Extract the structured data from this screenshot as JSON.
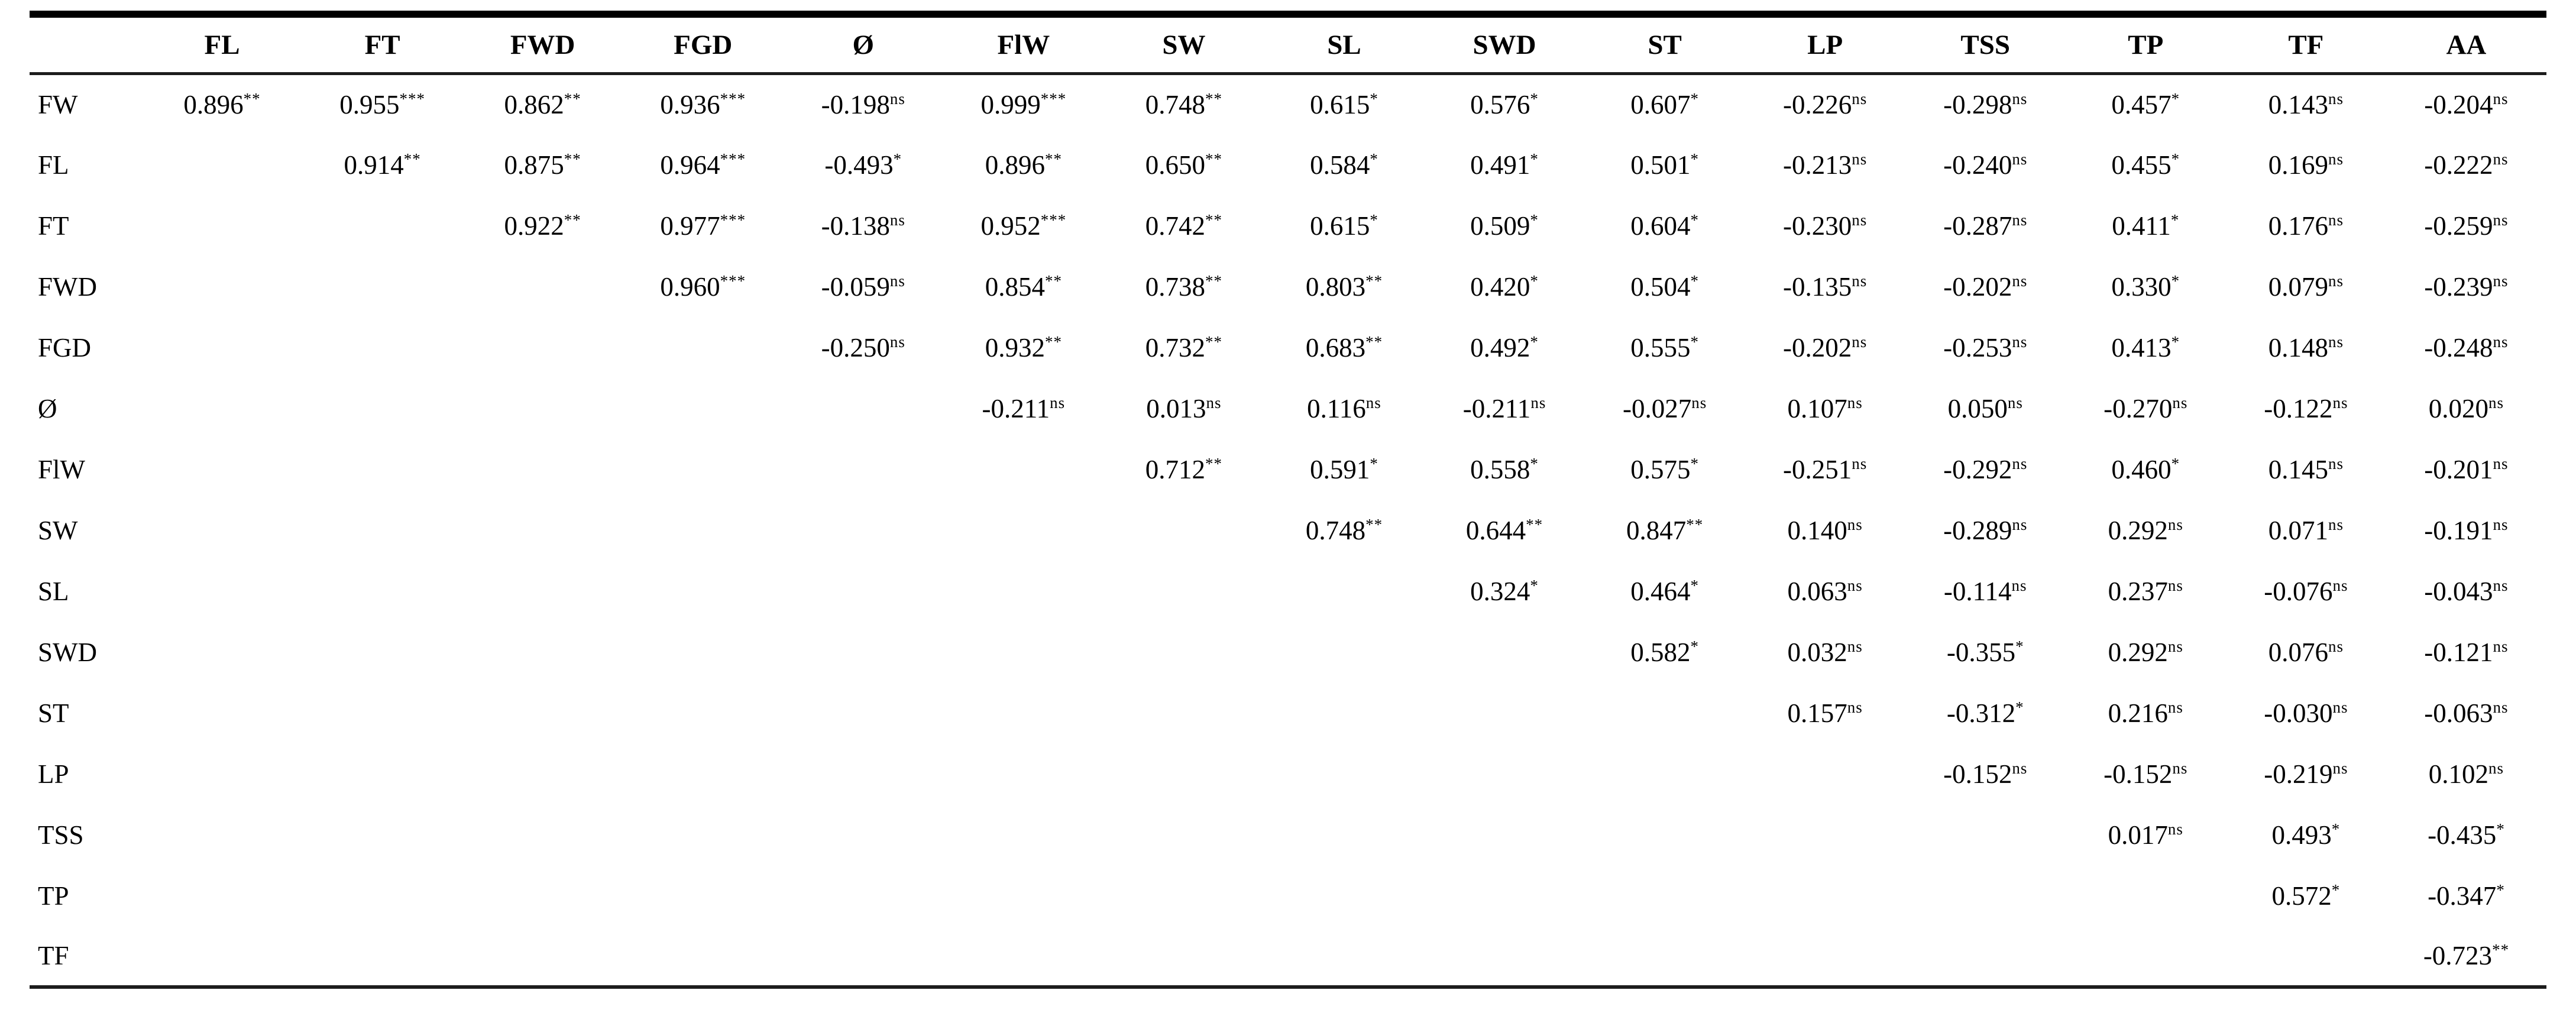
{
  "table": {
    "corner_label": "",
    "columns": [
      "FL",
      "FT",
      "FWD",
      "FGD",
      "Ø",
      "FlW",
      "SW",
      "SL",
      "SWD",
      "ST",
      "LP",
      "TSS",
      "TP",
      "TF",
      "AA"
    ],
    "significance_codes": [
      "*",
      "**",
      "***",
      "ns"
    ],
    "rows": [
      {
        "label": "FW",
        "cells": [
          {
            "v": "0.896",
            "s": "**"
          },
          {
            "v": "0.955",
            "s": "***"
          },
          {
            "v": "0.862",
            "s": "**"
          },
          {
            "v": "0.936",
            "s": "***"
          },
          {
            "v": "-0.198",
            "s": "ns"
          },
          {
            "v": "0.999",
            "s": "***"
          },
          {
            "v": "0.748",
            "s": "**"
          },
          {
            "v": "0.615",
            "s": "*"
          },
          {
            "v": "0.576",
            "s": "*"
          },
          {
            "v": "0.607",
            "s": "*"
          },
          {
            "v": "-0.226",
            "s": "ns"
          },
          {
            "v": "-0.298",
            "s": "ns"
          },
          {
            "v": "0.457",
            "s": "*"
          },
          {
            "v": "0.143",
            "s": "ns"
          },
          {
            "v": "-0.204",
            "s": "ns"
          }
        ]
      },
      {
        "label": "FL",
        "cells": [
          null,
          {
            "v": "0.914",
            "s": "**"
          },
          {
            "v": "0.875",
            "s": "**"
          },
          {
            "v": "0.964",
            "s": "***"
          },
          {
            "v": "-0.493",
            "s": "*"
          },
          {
            "v": "0.896",
            "s": "**"
          },
          {
            "v": "0.650",
            "s": "**"
          },
          {
            "v": "0.584",
            "s": "*"
          },
          {
            "v": "0.491",
            "s": "*"
          },
          {
            "v": "0.501",
            "s": "*"
          },
          {
            "v": "-0.213",
            "s": "ns"
          },
          {
            "v": "-0.240",
            "s": "ns"
          },
          {
            "v": "0.455",
            "s": "*"
          },
          {
            "v": "0.169",
            "s": "ns"
          },
          {
            "v": "-0.222",
            "s": "ns"
          }
        ]
      },
      {
        "label": "FT",
        "cells": [
          null,
          null,
          {
            "v": "0.922",
            "s": "**"
          },
          {
            "v": "0.977",
            "s": "***"
          },
          {
            "v": "-0.138",
            "s": "ns"
          },
          {
            "v": "0.952",
            "s": "***"
          },
          {
            "v": "0.742",
            "s": "**"
          },
          {
            "v": "0.615",
            "s": "*"
          },
          {
            "v": "0.509",
            "s": "*"
          },
          {
            "v": "0.604",
            "s": "*"
          },
          {
            "v": "-0.230",
            "s": "ns"
          },
          {
            "v": "-0.287",
            "s": "ns"
          },
          {
            "v": "0.411",
            "s": "*"
          },
          {
            "v": "0.176",
            "s": "ns"
          },
          {
            "v": "-0.259",
            "s": "ns"
          }
        ]
      },
      {
        "label": "FWD",
        "cells": [
          null,
          null,
          null,
          {
            "v": "0.960",
            "s": "***"
          },
          {
            "v": "-0.059",
            "s": "ns"
          },
          {
            "v": "0.854",
            "s": "**"
          },
          {
            "v": "0.738",
            "s": "**"
          },
          {
            "v": "0.803",
            "s": "**"
          },
          {
            "v": "0.420",
            "s": "*"
          },
          {
            "v": "0.504",
            "s": "*"
          },
          {
            "v": "-0.135",
            "s": "ns"
          },
          {
            "v": "-0.202",
            "s": "ns"
          },
          {
            "v": "0.330",
            "s": "*"
          },
          {
            "v": "0.079",
            "s": "ns"
          },
          {
            "v": "-0.239",
            "s": "ns"
          }
        ]
      },
      {
        "label": "FGD",
        "cells": [
          null,
          null,
          null,
          null,
          {
            "v": "-0.250",
            "s": "ns"
          },
          {
            "v": "0.932",
            "s": "**"
          },
          {
            "v": "0.732",
            "s": "**"
          },
          {
            "v": "0.683",
            "s": "**"
          },
          {
            "v": "0.492",
            "s": "*"
          },
          {
            "v": "0.555",
            "s": "*"
          },
          {
            "v": "-0.202",
            "s": "ns"
          },
          {
            "v": "-0.253",
            "s": "ns"
          },
          {
            "v": "0.413",
            "s": "*"
          },
          {
            "v": "0.148",
            "s": "ns"
          },
          {
            "v": "-0.248",
            "s": "ns"
          }
        ]
      },
      {
        "label": "Ø",
        "cells": [
          null,
          null,
          null,
          null,
          null,
          {
            "v": "-0.211",
            "s": "ns"
          },
          {
            "v": "0.013",
            "s": "ns"
          },
          {
            "v": "0.116",
            "s": "ns"
          },
          {
            "v": "-0.211",
            "s": "ns"
          },
          {
            "v": "-0.027",
            "s": "ns"
          },
          {
            "v": "0.107",
            "s": "ns"
          },
          {
            "v": "0.050",
            "s": "ns"
          },
          {
            "v": "-0.270",
            "s": "ns"
          },
          {
            "v": "-0.122",
            "s": "ns"
          },
          {
            "v": "0.020",
            "s": "ns"
          }
        ]
      },
      {
        "label": "FlW",
        "cells": [
          null,
          null,
          null,
          null,
          null,
          null,
          {
            "v": "0.712",
            "s": "**"
          },
          {
            "v": "0.591",
            "s": "*"
          },
          {
            "v": "0.558",
            "s": "*"
          },
          {
            "v": "0.575",
            "s": "*"
          },
          {
            "v": "-0.251",
            "s": "ns"
          },
          {
            "v": "-0.292",
            "s": "ns"
          },
          {
            "v": "0.460",
            "s": "*"
          },
          {
            "v": "0.145",
            "s": "ns"
          },
          {
            "v": "-0.201",
            "s": "ns"
          }
        ]
      },
      {
        "label": "SW",
        "cells": [
          null,
          null,
          null,
          null,
          null,
          null,
          null,
          {
            "v": "0.748",
            "s": "**"
          },
          {
            "v": "0.644",
            "s": "**"
          },
          {
            "v": "0.847",
            "s": "**"
          },
          {
            "v": "0.140",
            "s": "ns"
          },
          {
            "v": "-0.289",
            "s": "ns"
          },
          {
            "v": "0.292",
            "s": "ns"
          },
          {
            "v": "0.071",
            "s": "ns"
          },
          {
            "v": "-0.191",
            "s": "ns"
          }
        ]
      },
      {
        "label": "SL",
        "cells": [
          null,
          null,
          null,
          null,
          null,
          null,
          null,
          null,
          {
            "v": "0.324",
            "s": "*"
          },
          {
            "v": "0.464",
            "s": "*"
          },
          {
            "v": "0.063",
            "s": "ns"
          },
          {
            "v": "-0.114",
            "s": "ns"
          },
          {
            "v": "0.237",
            "s": "ns"
          },
          {
            "v": "-0.076",
            "s": "ns"
          },
          {
            "v": "-0.043",
            "s": "ns"
          }
        ]
      },
      {
        "label": "SWD",
        "cells": [
          null,
          null,
          null,
          null,
          null,
          null,
          null,
          null,
          null,
          {
            "v": "0.582",
            "s": "*"
          },
          {
            "v": "0.032",
            "s": "ns"
          },
          {
            "v": "-0.355",
            "s": "*"
          },
          {
            "v": "0.292",
            "s": "ns"
          },
          {
            "v": "0.076",
            "s": "ns"
          },
          {
            "v": "-0.121",
            "s": "ns"
          }
        ]
      },
      {
        "label": "ST",
        "cells": [
          null,
          null,
          null,
          null,
          null,
          null,
          null,
          null,
          null,
          null,
          {
            "v": "0.157",
            "s": "ns"
          },
          {
            "v": "-0.312",
            "s": "*"
          },
          {
            "v": "0.216",
            "s": "ns"
          },
          {
            "v": "-0.030",
            "s": "ns"
          },
          {
            "v": "-0.063",
            "s": "ns"
          }
        ]
      },
      {
        "label": "LP",
        "cells": [
          null,
          null,
          null,
          null,
          null,
          null,
          null,
          null,
          null,
          null,
          null,
          {
            "v": "-0.152",
            "s": "ns"
          },
          {
            "v": "-0.152",
            "s": "ns"
          },
          {
            "v": "-0.219",
            "s": "ns"
          },
          {
            "v": "0.102",
            "s": "ns"
          }
        ]
      },
      {
        "label": "TSS",
        "cells": [
          null,
          null,
          null,
          null,
          null,
          null,
          null,
          null,
          null,
          null,
          null,
          null,
          {
            "v": "0.017",
            "s": "ns"
          },
          {
            "v": "0.493",
            "s": "*"
          },
          {
            "v": "-0.435",
            "s": "*"
          }
        ]
      },
      {
        "label": "TP",
        "cells": [
          null,
          null,
          null,
          null,
          null,
          null,
          null,
          null,
          null,
          null,
          null,
          null,
          null,
          {
            "v": "0.572",
            "s": "*"
          },
          {
            "v": "-0.347",
            "s": "*"
          }
        ]
      },
      {
        "label": "TF",
        "cells": [
          null,
          null,
          null,
          null,
          null,
          null,
          null,
          null,
          null,
          null,
          null,
          null,
          null,
          null,
          {
            "v": "-0.723",
            "s": "**"
          }
        ]
      }
    ]
  }
}
